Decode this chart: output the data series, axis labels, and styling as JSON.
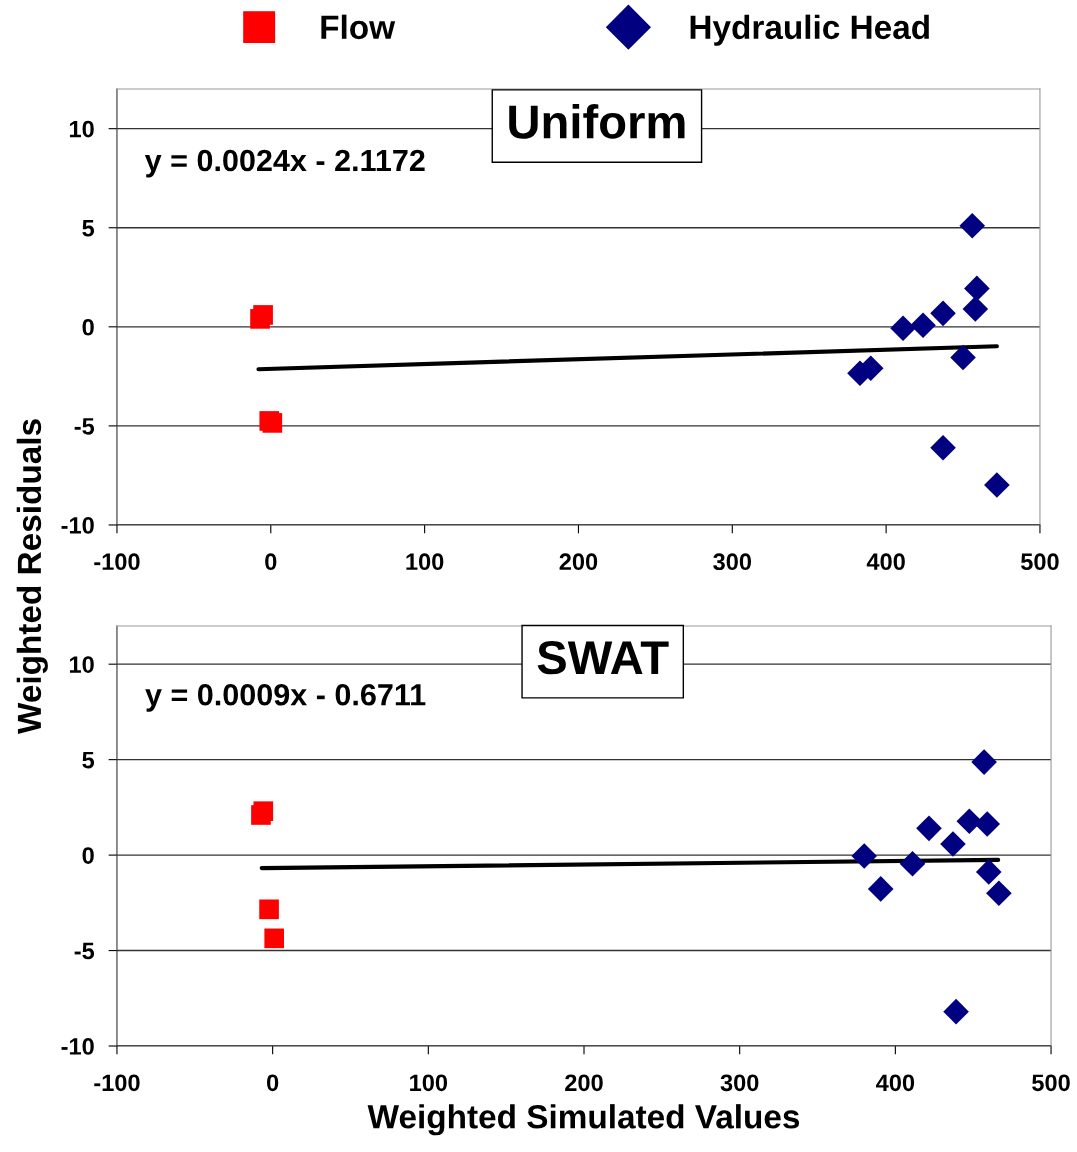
{
  "chart_data": [
    {
      "type": "scatter",
      "title": "Uniform",
      "ylabel": "Weighted Residuals",
      "xlim": [
        -100,
        500
      ],
      "xticks": [
        -100,
        0,
        100,
        200,
        300,
        400,
        500
      ],
      "ylim": [
        -10,
        12
      ],
      "yticks": [
        -10,
        -5,
        0,
        5,
        10
      ],
      "grid": "y",
      "legend": "top",
      "annotations": [
        "y = 0.0024x - 2.1172"
      ],
      "series": [
        {
          "name": "Flow",
          "color": "#ff0000",
          "marker": "square",
          "x": [
            -7,
            -5,
            -1,
            1
          ],
          "values": [
            0.4,
            0.6,
            -4.75,
            -4.85
          ]
        },
        {
          "name": "Hydraulic Head",
          "color": "#000080",
          "marker": "diamond",
          "x": [
            456,
            459,
            458,
            437,
            424,
            411,
            450,
            390,
            383,
            437,
            472
          ],
          "values": [
            5.1,
            1.94,
            0.9,
            0.68,
            0.08,
            -0.07,
            -1.55,
            -2.09,
            -2.34,
            -6.1,
            -7.98
          ]
        },
        {
          "type": "line",
          "color": "#000000",
          "marker": "none",
          "line_style": "solid",
          "x": [
            -8,
            472
          ],
          "values": [
            -2.14,
            -0.98
          ]
        }
      ]
    },
    {
      "type": "scatter",
      "title": "SWAT",
      "xlabel": "Weighted Simulated Values",
      "xlim": [
        -100,
        500
      ],
      "xticks": [
        -100,
        0,
        100,
        200,
        300,
        400,
        500
      ],
      "ylim": [
        -10,
        12
      ],
      "yticks": [
        -10,
        -5,
        0,
        5,
        10
      ],
      "grid": "y",
      "annotations": [
        "y = 0.0009x - 0.6711"
      ],
      "series": [
        {
          "color": "#ff0000",
          "marker": "square",
          "x": [
            -7.5,
            -6,
            -2.3,
            1
          ],
          "values": [
            2.1,
            2.3,
            -2.84,
            -4.36
          ]
        },
        {
          "color": "#000080",
          "marker": "diamond",
          "x": [
            457,
            447.5,
            459,
            421.6,
            437,
            380,
            411,
            460,
            390.6,
            466.5,
            439
          ],
          "values": [
            4.87,
            1.77,
            1.63,
            1.4,
            0.58,
            -0.05,
            -0.45,
            -0.88,
            -1.77,
            -2.0,
            -8.2
          ]
        },
        {
          "type": "line",
          "color": "#000000",
          "marker": "none",
          "line_style": "solid",
          "x": [
            -7,
            466
          ],
          "values": [
            -0.68,
            -0.25
          ]
        }
      ]
    }
  ]
}
